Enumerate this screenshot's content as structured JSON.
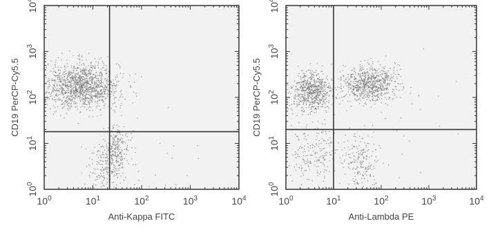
{
  "colors": {
    "background": "#ffffff",
    "plot_background": "#f2f2f2",
    "frame": "#333333",
    "quadrant_line": "#333333",
    "dots": "#6f6f6f",
    "text": "#444444"
  },
  "chart_data": [
    {
      "type": "scatter",
      "title": "",
      "xlabel": "Anti-Kappa FITC",
      "ylabel": "CD19 PerCP-Cy5.5",
      "xscale": "log",
      "yscale": "log",
      "xlim": [
        1,
        10000
      ],
      "ylim": [
        1,
        10000
      ],
      "xticks": [
        {
          "value": 1,
          "base": "10",
          "exp": "0"
        },
        {
          "value": 10,
          "base": "10",
          "exp": "1"
        },
        {
          "value": 100,
          "base": "10",
          "exp": "2"
        },
        {
          "value": 1000,
          "base": "10",
          "exp": "3"
        },
        {
          "value": 10000,
          "base": "10",
          "exp": "4"
        }
      ],
      "yticks": [
        {
          "value": 1,
          "base": "10",
          "exp": "0"
        },
        {
          "value": 10,
          "base": "10",
          "exp": "1"
        },
        {
          "value": 100,
          "base": "10",
          "exp": "2"
        },
        {
          "value": 1000,
          "base": "10",
          "exp": "3"
        },
        {
          "value": 10000,
          "base": "10",
          "exp": "4"
        }
      ],
      "quadrant_gates": {
        "x": 22,
        "y": 18
      },
      "grid": false,
      "populations": [
        {
          "center_x": 6,
          "center_y": 180,
          "spread_x_decades": 0.38,
          "spread_y_decades": 0.25,
          "count": 1300
        },
        {
          "center_x": 30,
          "center_y": 6,
          "spread_x_decades": 0.13,
          "spread_y_decades": 0.3,
          "count": 280
        },
        {
          "center_x": 15,
          "center_y": 3,
          "spread_x_decades": 0.15,
          "spread_y_decades": 0.28,
          "count": 120
        },
        {
          "center_x": 150,
          "center_y": 4,
          "spread_x_decades": 0.6,
          "spread_y_decades": 0.5,
          "count": 25
        }
      ]
    },
    {
      "type": "scatter",
      "title": "",
      "xlabel": "Anti-Lambda PE",
      "ylabel": "CD19 PerCP-Cy5.5",
      "xscale": "log",
      "yscale": "log",
      "xlim": [
        1,
        10000
      ],
      "ylim": [
        1,
        10000
      ],
      "xticks": [
        {
          "value": 1,
          "base": "10",
          "exp": "0"
        },
        {
          "value": 10,
          "base": "10",
          "exp": "1"
        },
        {
          "value": 100,
          "base": "10",
          "exp": "2"
        },
        {
          "value": 1000,
          "base": "10",
          "exp": "3"
        },
        {
          "value": 10000,
          "base": "10",
          "exp": "4"
        }
      ],
      "yticks": [
        {
          "value": 1,
          "base": "10",
          "exp": "0"
        },
        {
          "value": 10,
          "base": "10",
          "exp": "1"
        },
        {
          "value": 100,
          "base": "10",
          "exp": "2"
        },
        {
          "value": 1000,
          "base": "10",
          "exp": "3"
        },
        {
          "value": 10000,
          "base": "10",
          "exp": "4"
        }
      ],
      "quadrant_gates": {
        "x": 10,
        "y": 20
      },
      "grid": false,
      "populations": [
        {
          "center_x": 3.5,
          "center_y": 130,
          "spread_x_decades": 0.22,
          "spread_y_decades": 0.22,
          "count": 650
        },
        {
          "center_x": 55,
          "center_y": 200,
          "spread_x_decades": 0.28,
          "spread_y_decades": 0.2,
          "count": 750
        },
        {
          "center_x": 4,
          "center_y": 6,
          "spread_x_decades": 0.25,
          "spread_y_decades": 0.3,
          "count": 200
        },
        {
          "center_x": 40,
          "center_y": 4,
          "spread_x_decades": 0.2,
          "spread_y_decades": 0.3,
          "count": 200
        },
        {
          "center_x": 300,
          "center_y": 30,
          "spread_x_decades": 0.5,
          "spread_y_decades": 0.7,
          "count": 25
        }
      ]
    }
  ]
}
